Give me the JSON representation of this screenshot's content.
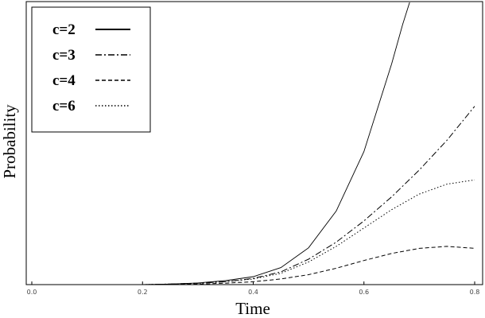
{
  "chart_data": {
    "type": "line",
    "title": "",
    "xlabel": "Time",
    "ylabel": "Probability",
    "xlim": [
      0.0,
      0.8
    ],
    "ylim": [
      0.0,
      1.0
    ],
    "xticks": [
      "0.0",
      "0.2",
      "0.4",
      "0.6",
      "0.8"
    ],
    "grid": false,
    "legend_position": "top-left",
    "series": [
      {
        "name": "c=2",
        "style": "solid",
        "x": [
          0.2,
          0.25,
          0.3,
          0.35,
          0.4,
          0.45,
          0.5,
          0.55,
          0.6,
          0.65,
          0.67,
          0.683
        ],
        "y": [
          0.0,
          0.002,
          0.006,
          0.014,
          0.028,
          0.06,
          0.13,
          0.26,
          0.47,
          0.78,
          0.92,
          1.0
        ]
      },
      {
        "name": "c=3",
        "style": "dashdot",
        "x": [
          0.2,
          0.25,
          0.3,
          0.35,
          0.4,
          0.45,
          0.5,
          0.55,
          0.6,
          0.65,
          0.7,
          0.75,
          0.8
        ],
        "y": [
          0.0,
          0.002,
          0.005,
          0.01,
          0.022,
          0.045,
          0.09,
          0.15,
          0.225,
          0.31,
          0.405,
          0.51,
          0.63
        ]
      },
      {
        "name": "c=4",
        "style": "dashed",
        "x": [
          0.2,
          0.25,
          0.3,
          0.35,
          0.4,
          0.45,
          0.5,
          0.55,
          0.6,
          0.65,
          0.7,
          0.75,
          0.8
        ],
        "y": [
          0.0,
          0.001,
          0.002,
          0.005,
          0.01,
          0.02,
          0.035,
          0.058,
          0.085,
          0.11,
          0.128,
          0.135,
          0.128
        ]
      },
      {
        "name": "c=6",
        "style": "dotted",
        "x": [
          0.2,
          0.25,
          0.3,
          0.35,
          0.4,
          0.45,
          0.5,
          0.55,
          0.6,
          0.65,
          0.7,
          0.75,
          0.8
        ],
        "y": [
          0.0,
          0.002,
          0.005,
          0.01,
          0.02,
          0.04,
          0.08,
          0.135,
          0.2,
          0.265,
          0.32,
          0.355,
          0.37
        ]
      }
    ]
  }
}
